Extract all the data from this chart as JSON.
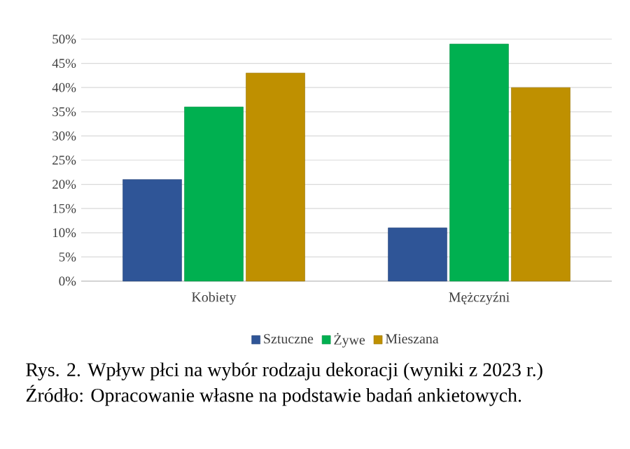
{
  "chart_data": {
    "type": "bar",
    "title": "Rys. 2. Wpływ płci na wybór rodzaju dekoracji (wyniki z 2023 r.)",
    "annotations": [
      "Źródło: Opracowanie własne na podstawie badań ankietowych."
    ],
    "categories": [
      "Kobiety",
      "Mężczyźni"
    ],
    "series": [
      {
        "name": "Sztuczne",
        "color": "#2f5597",
        "values": [
          21,
          11
        ]
      },
      {
        "name": "Żywe",
        "color": "#00b050",
        "values": [
          36,
          49
        ]
      },
      {
        "name": "Mieszana",
        "color": "#bf9000",
        "values": [
          43,
          40
        ]
      }
    ],
    "ylim": [
      0,
      50
    ],
    "yticks": [
      {
        "value": 0,
        "label": "0%"
      },
      {
        "value": 5,
        "label": "5%"
      },
      {
        "value": 10,
        "label": "10%"
      },
      {
        "value": 15,
        "label": "15%"
      },
      {
        "value": 20,
        "label": "20%"
      },
      {
        "value": 25,
        "label": "25%"
      },
      {
        "value": 30,
        "label": "30%"
      },
      {
        "value": 35,
        "label": "35%"
      },
      {
        "value": 40,
        "label": "40%"
      },
      {
        "value": 45,
        "label": "45%"
      },
      {
        "value": 50,
        "label": "50%"
      }
    ],
    "grid": "y",
    "legend": "bottom"
  }
}
